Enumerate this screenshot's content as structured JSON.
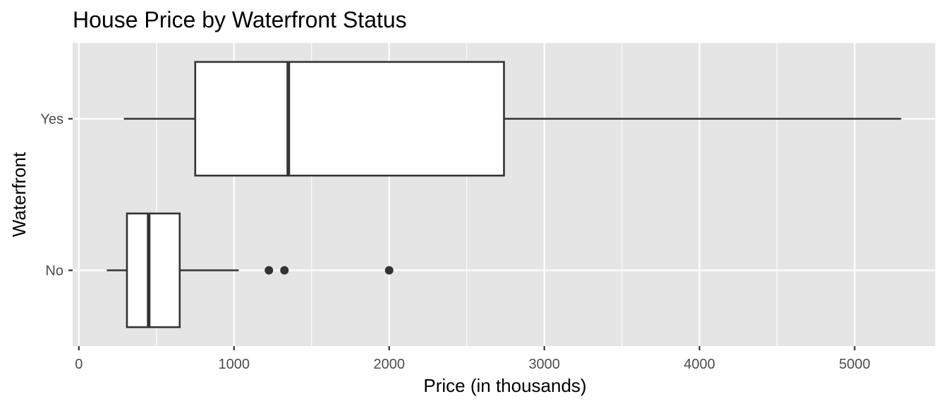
{
  "chart_data": {
    "type": "boxplot",
    "orientation": "horizontal",
    "title": "House Price by Waterfront Status",
    "xlabel": "Price (in thousands)",
    "ylabel": "Waterfront",
    "xlim": [
      -40,
      5520
    ],
    "x_ticks": [
      0,
      1000,
      2000,
      3000,
      4000,
      5000
    ],
    "x_tick_labels": [
      "0",
      "1000",
      "2000",
      "3000",
      "4000",
      "5000"
    ],
    "x_minor_ticks": [
      500,
      1500,
      2500,
      3500,
      4500
    ],
    "categories": [
      "No",
      "Yes"
    ],
    "boxes": [
      {
        "category": "No",
        "whisker_low": 180,
        "q1": 310,
        "median": 450,
        "q3": 650,
        "whisker_high": 1030,
        "outliers": [
          1225,
          1325,
          2000
        ]
      },
      {
        "category": "Yes",
        "whisker_low": 290,
        "q1": 750,
        "median": 1350,
        "q3": 2740,
        "whisker_high": 5300,
        "outliers": []
      }
    ],
    "grid": true,
    "colors": {
      "panel": "#e5e5e5",
      "grid": "#ffffff",
      "box_fill": "#ffffff",
      "box_line": "#333333"
    }
  }
}
